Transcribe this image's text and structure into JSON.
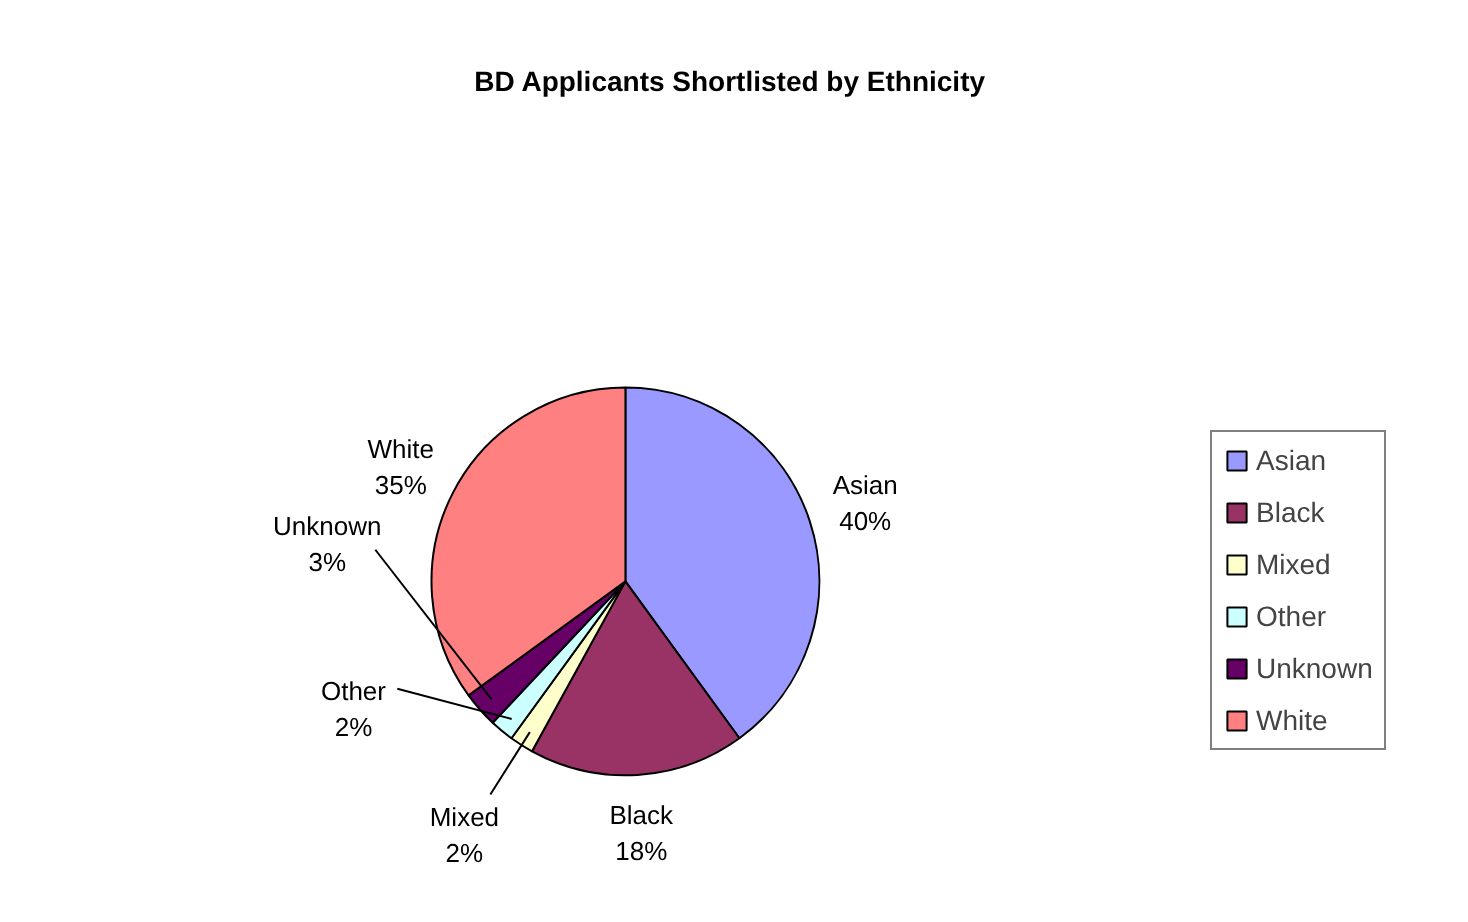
{
  "chart_data": {
    "type": "pie",
    "title": "BD Applicants Shortlisted by Ethnicity",
    "categories": [
      "Asian",
      "Black",
      "Mixed",
      "Other",
      "Unknown",
      "White"
    ],
    "values": [
      40,
      18,
      2,
      2,
      3,
      35
    ],
    "colors": [
      "#9999ff",
      "#993366",
      "#ffffcc",
      "#ccffff",
      "#660066",
      "#ff8080"
    ],
    "value_labels": [
      "40%",
      "18%",
      "2%",
      "2%",
      "3%",
      "35%"
    ],
    "legend": "right"
  }
}
